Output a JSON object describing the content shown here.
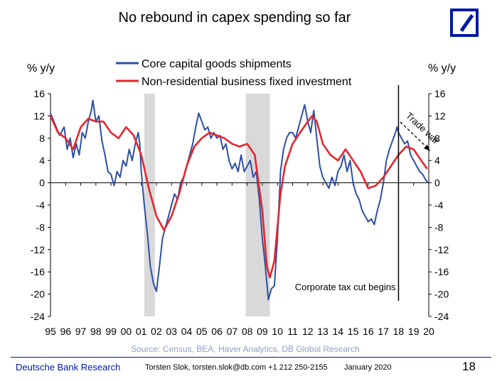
{
  "chart_data": {
    "type": "line",
    "title": "No rebound in capex spending so far",
    "ylabel_left": "% y/y",
    "ylabel_right": "% y/y",
    "ylim": [
      -24,
      16
    ],
    "yticks": [
      16,
      12,
      8,
      4,
      0,
      -4,
      -8,
      -12,
      -16,
      -20,
      -24
    ],
    "xlim": [
      1995,
      2020
    ],
    "xticks": [
      "95",
      "96",
      "97",
      "98",
      "99",
      "00",
      "01",
      "02",
      "03",
      "04",
      "05",
      "06",
      "07",
      "08",
      "09",
      "10",
      "11",
      "12",
      "13",
      "14",
      "15",
      "16",
      "17",
      "18",
      "19",
      "20"
    ],
    "legend_position": "top-left",
    "recessions": [
      [
        2001.2,
        2001.9
      ],
      [
        2007.9,
        2009.5
      ]
    ],
    "series": [
      {
        "name": "Core capital goods shipments",
        "color": "#2e4fa3",
        "points": [
          [
            1995.0,
            12.5
          ],
          [
            1995.3,
            10.5
          ],
          [
            1995.6,
            8.5
          ],
          [
            1995.9,
            10
          ],
          [
            1996.1,
            6
          ],
          [
            1996.3,
            8
          ],
          [
            1996.5,
            4.5
          ],
          [
            1996.7,
            7
          ],
          [
            1996.9,
            5
          ],
          [
            1997.1,
            9
          ],
          [
            1997.3,
            8
          ],
          [
            1997.5,
            11
          ],
          [
            1997.7,
            13
          ],
          [
            1997.8,
            14.8
          ],
          [
            1998.0,
            11
          ],
          [
            1998.2,
            12
          ],
          [
            1998.4,
            7.5
          ],
          [
            1998.6,
            5
          ],
          [
            1998.8,
            2
          ],
          [
            1999.0,
            1.5
          ],
          [
            1999.2,
            -0.5
          ],
          [
            1999.4,
            2
          ],
          [
            1999.6,
            1
          ],
          [
            1999.8,
            4
          ],
          [
            2000.0,
            3
          ],
          [
            2000.2,
            6
          ],
          [
            2000.4,
            4
          ],
          [
            2000.6,
            7
          ],
          [
            2000.8,
            9
          ],
          [
            2000.9,
            7
          ],
          [
            2001.0,
            2
          ],
          [
            2001.2,
            -4
          ],
          [
            2001.4,
            -9
          ],
          [
            2001.6,
            -15
          ],
          [
            2001.8,
            -18
          ],
          [
            2002.0,
            -19.5
          ],
          [
            2002.2,
            -15
          ],
          [
            2002.4,
            -10
          ],
          [
            2002.6,
            -8
          ],
          [
            2002.8,
            -6
          ],
          [
            2003.0,
            -4
          ],
          [
            2003.2,
            -2
          ],
          [
            2003.4,
            -3
          ],
          [
            2003.6,
            0
          ],
          [
            2003.8,
            1
          ],
          [
            2004.0,
            3
          ],
          [
            2004.2,
            5
          ],
          [
            2004.4,
            7
          ],
          [
            2004.6,
            10
          ],
          [
            2004.8,
            12.5
          ],
          [
            2005.0,
            11
          ],
          [
            2005.2,
            9.5
          ],
          [
            2005.4,
            10
          ],
          [
            2005.6,
            8
          ],
          [
            2005.8,
            9
          ],
          [
            2006.0,
            8
          ],
          [
            2006.2,
            8.5
          ],
          [
            2006.4,
            6
          ],
          [
            2006.6,
            7
          ],
          [
            2006.8,
            4
          ],
          [
            2007.0,
            2.5
          ],
          [
            2007.2,
            3.5
          ],
          [
            2007.4,
            2
          ],
          [
            2007.6,
            5
          ],
          [
            2007.8,
            2
          ],
          [
            2008.0,
            3
          ],
          [
            2008.2,
            4
          ],
          [
            2008.4,
            1
          ],
          [
            2008.6,
            2
          ],
          [
            2008.8,
            -3
          ],
          [
            2009.0,
            -10
          ],
          [
            2009.2,
            -15
          ],
          [
            2009.4,
            -21
          ],
          [
            2009.6,
            -19
          ],
          [
            2009.8,
            -18.5
          ],
          [
            2010.0,
            -10
          ],
          [
            2010.2,
            2
          ],
          [
            2010.4,
            6
          ],
          [
            2010.6,
            8
          ],
          [
            2010.8,
            9
          ],
          [
            2011.0,
            9
          ],
          [
            2011.2,
            8
          ],
          [
            2011.4,
            10
          ],
          [
            2011.6,
            12
          ],
          [
            2011.8,
            14
          ],
          [
            2012.0,
            11
          ],
          [
            2012.2,
            9
          ],
          [
            2012.4,
            13
          ],
          [
            2012.6,
            8
          ],
          [
            2012.8,
            3
          ],
          [
            2013.0,
            1
          ],
          [
            2013.2,
            0
          ],
          [
            2013.4,
            -1
          ],
          [
            2013.6,
            1
          ],
          [
            2013.8,
            -0.5
          ],
          [
            2014.0,
            2
          ],
          [
            2014.2,
            3
          ],
          [
            2014.4,
            5
          ],
          [
            2014.6,
            2
          ],
          [
            2014.8,
            4
          ],
          [
            2015.0,
            0
          ],
          [
            2015.2,
            -2
          ],
          [
            2015.4,
            -3
          ],
          [
            2015.6,
            -5
          ],
          [
            2015.8,
            -6
          ],
          [
            2016.0,
            -7
          ],
          [
            2016.2,
            -6.5
          ],
          [
            2016.4,
            -7.5
          ],
          [
            2016.6,
            -5
          ],
          [
            2016.8,
            -3
          ],
          [
            2017.0,
            0
          ],
          [
            2017.2,
            4
          ],
          [
            2017.4,
            6
          ],
          [
            2017.6,
            7.5
          ],
          [
            2017.8,
            9
          ],
          [
            2017.9,
            10
          ],
          [
            2018.0,
            9
          ],
          [
            2018.2,
            8
          ],
          [
            2018.4,
            7
          ],
          [
            2018.6,
            7.5
          ],
          [
            2018.8,
            5
          ],
          [
            2019.0,
            4
          ],
          [
            2019.2,
            3
          ],
          [
            2019.4,
            2
          ],
          [
            2019.6,
            1.5
          ],
          [
            2019.8,
            0.5
          ],
          [
            2019.95,
            0
          ]
        ]
      },
      {
        "name": "Non-residential business fixed investment",
        "color": "#e3262d",
        "points": [
          [
            1995.0,
            12
          ],
          [
            1995.5,
            9
          ],
          [
            1996.0,
            8
          ],
          [
            1996.5,
            6
          ],
          [
            1997.0,
            10
          ],
          [
            1997.5,
            11.5
          ],
          [
            1998.0,
            11
          ],
          [
            1998.5,
            11
          ],
          [
            1999.0,
            9
          ],
          [
            1999.5,
            8
          ],
          [
            2000.0,
            10
          ],
          [
            2000.5,
            8.5
          ],
          [
            2001.0,
            5
          ],
          [
            2001.5,
            -1
          ],
          [
            2002.0,
            -6
          ],
          [
            2002.5,
            -8.5
          ],
          [
            2003.0,
            -6
          ],
          [
            2003.5,
            -2
          ],
          [
            2004.0,
            3
          ],
          [
            2004.5,
            6.5
          ],
          [
            2005.0,
            8
          ],
          [
            2005.5,
            9
          ],
          [
            2006.0,
            8.5
          ],
          [
            2006.5,
            8
          ],
          [
            2007.0,
            7
          ],
          [
            2007.5,
            6.5
          ],
          [
            2008.0,
            7
          ],
          [
            2008.5,
            5
          ],
          [
            2009.0,
            -5
          ],
          [
            2009.3,
            -15
          ],
          [
            2009.5,
            -17
          ],
          [
            2009.8,
            -14
          ],
          [
            2010.2,
            -2
          ],
          [
            2010.5,
            3
          ],
          [
            2011.0,
            7
          ],
          [
            2011.5,
            9
          ],
          [
            2012.0,
            11
          ],
          [
            2012.3,
            12
          ],
          [
            2012.6,
            11
          ],
          [
            2013.0,
            7
          ],
          [
            2013.5,
            5
          ],
          [
            2014.0,
            4
          ],
          [
            2014.5,
            6
          ],
          [
            2015.0,
            4
          ],
          [
            2015.5,
            2
          ],
          [
            2016.0,
            -1
          ],
          [
            2016.5,
            -0.5
          ],
          [
            2017.0,
            1
          ],
          [
            2017.5,
            3
          ],
          [
            2018.0,
            5
          ],
          [
            2018.5,
            6.5
          ],
          [
            2019.0,
            6
          ],
          [
            2019.5,
            4
          ],
          [
            2019.9,
            2.5
          ]
        ]
      }
    ],
    "annotations": {
      "tax_cut": "Corporate tax cut begins",
      "tax_cut_year": 2018.0,
      "trade_war": "Trade war"
    },
    "source": "Source: Census, BEA, Haver Analytics, DB Global Research"
  },
  "footer": {
    "brand": "Deutsche Bank Research",
    "author": "Torsten Slok, torsten.slok@db.com  +1 212 250-2155",
    "date": "January 2020",
    "page": "18"
  },
  "logo": "deutsche-bank-logo"
}
